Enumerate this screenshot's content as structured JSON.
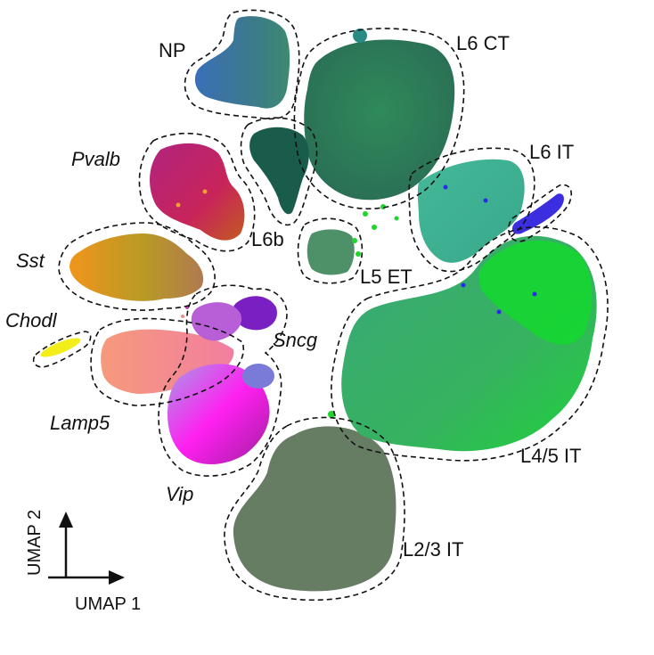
{
  "figure": {
    "clusters": [
      {
        "key": "np",
        "label": "NP",
        "italic": false,
        "color": "#3a6fb0"
      },
      {
        "key": "l6ct",
        "label": "L6 CT",
        "italic": false,
        "color": "#2e7a55"
      },
      {
        "key": "pvalb",
        "label": "Pvalb",
        "italic": true,
        "color": "#c0267a"
      },
      {
        "key": "l6it",
        "label": "L6 IT",
        "italic": false,
        "color": "#3fb38d"
      },
      {
        "key": "l6b",
        "label": "L6b",
        "italic": false,
        "color": "#145a4a"
      },
      {
        "key": "sst",
        "label": "Sst",
        "italic": true,
        "color": "#e8951f"
      },
      {
        "key": "l5et",
        "label": "L5 ET",
        "italic": false,
        "color": "#4d8f66"
      },
      {
        "key": "chodl",
        "label": "Chodl",
        "italic": true,
        "color": "#f2ee1a"
      },
      {
        "key": "sncg",
        "label": "Sncg",
        "italic": true,
        "color": "#7a1fc2"
      },
      {
        "key": "lamp5",
        "label": "Lamp5",
        "italic": true,
        "color": "#f08a78"
      },
      {
        "key": "l45it",
        "label": "L4/5 IT",
        "italic": false,
        "color": "#3aaa6a"
      },
      {
        "key": "vip",
        "label": "Vip",
        "italic": true,
        "color": "#e61fe0"
      },
      {
        "key": "l23it",
        "label": "L2/3 IT",
        "italic": false,
        "color": "#647a62"
      }
    ],
    "axes": {
      "x_label": "UMAP 1",
      "y_label": "UMAP 2"
    }
  }
}
